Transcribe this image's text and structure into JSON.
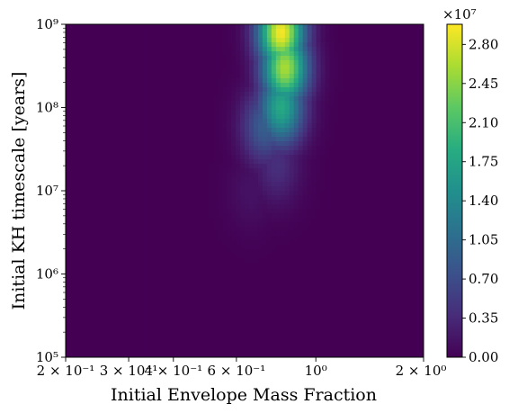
{
  "chart_data": {
    "type": "heatmap",
    "title": "",
    "xlabel": "Initial Envelope Mass Fraction",
    "ylabel": "Initial KH timescale [years]",
    "x_scale": "log",
    "y_scale": "log",
    "xlim": [
      0.2,
      2.0
    ],
    "ylim": [
      100000,
      1000000000
    ],
    "x_ticks": [
      {
        "value": 0.2,
        "label": "2 × 10⁻¹"
      },
      {
        "value": 0.3,
        "label": "3 × 10⁻¹"
      },
      {
        "value": 0.4,
        "label": "4 × 10⁻¹"
      },
      {
        "value": 0.6,
        "label": "6 × 10⁻¹"
      },
      {
        "value": 1.0,
        "label": "10⁰"
      },
      {
        "value": 2.0,
        "label": "2 × 10⁰"
      }
    ],
    "y_ticks": [
      {
        "value": 100000,
        "label": "10⁵"
      },
      {
        "value": 1000000,
        "label": "10⁶"
      },
      {
        "value": 10000000,
        "label": "10⁷"
      },
      {
        "value": 100000000,
        "label": "10⁸"
      },
      {
        "value": 1000000000,
        "label": "10⁹"
      }
    ],
    "colormap": "viridis",
    "colorbar": {
      "range": [
        0,
        29800000
      ],
      "offset_label": "×10⁷",
      "ticks": [
        {
          "value": 0,
          "label": "0.00"
        },
        {
          "value": 3500000,
          "label": "0.35"
        },
        {
          "value": 7000000,
          "label": "0.70"
        },
        {
          "value": 10500000,
          "label": "1.05"
        },
        {
          "value": 14000000,
          "label": "1.40"
        },
        {
          "value": 17500000,
          "label": "1.75"
        },
        {
          "value": 21000000,
          "label": "2.10"
        },
        {
          "value": 24500000,
          "label": "2.45"
        },
        {
          "value": 28000000,
          "label": "2.80"
        }
      ]
    },
    "density_peaks": [
      {
        "x": 0.8,
        "y": 800000000,
        "value": 29500000
      },
      {
        "x": 0.82,
        "y": 300000000,
        "value": 26000000
      },
      {
        "x": 0.8,
        "y": 100000000,
        "value": 18000000
      },
      {
        "x": 0.72,
        "y": 60000000,
        "value": 9000000
      },
      {
        "x": 0.78,
        "y": 20000000,
        "value": 4000000
      },
      {
        "x": 0.66,
        "y": 10000000,
        "value": 1500000
      }
    ],
    "grid": false
  }
}
